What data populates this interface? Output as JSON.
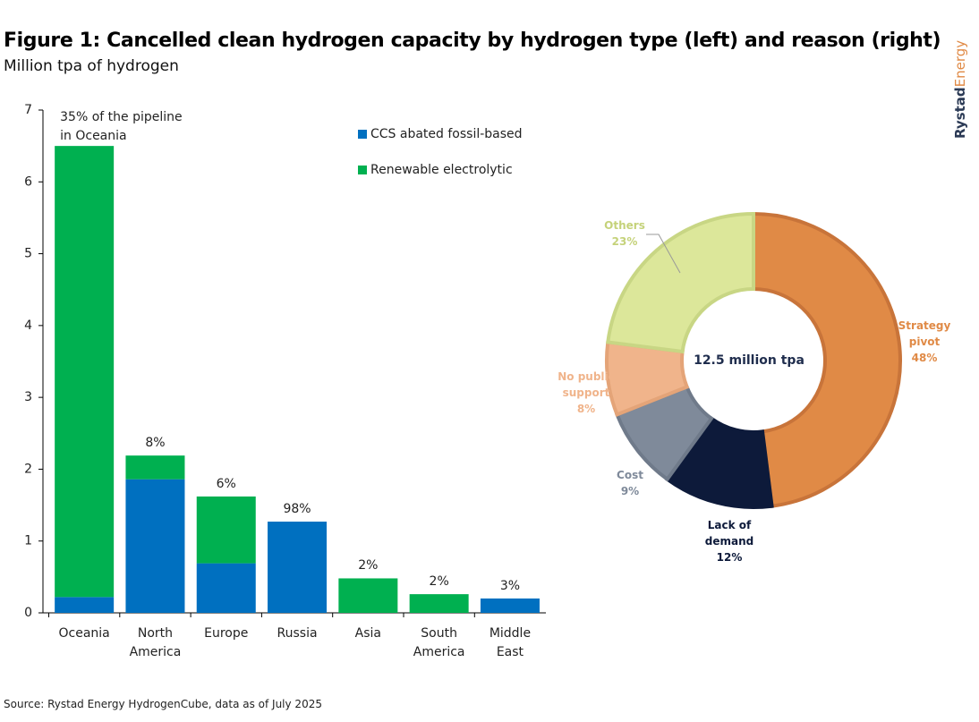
{
  "title": "Figure 1: Cancelled clean hydrogen capacity by hydrogen type (left) and reason (right)",
  "subtitle": "Million tpa of hydrogen",
  "source": "Source: Rystad Energy HydrogenCube, data as of July 2025",
  "logo": {
    "first": "Rystad",
    "second": "Energy"
  },
  "chart_data": [
    {
      "type": "bar",
      "stacked": true,
      "categories": [
        "Oceania",
        "North America",
        "Europe",
        "Russia",
        "Asia",
        "South America",
        "Middle East"
      ],
      "series": [
        {
          "name": "CCS abated fossil-based",
          "color": "#0070c0",
          "values": [
            0.22,
            1.86,
            0.69,
            1.27,
            0,
            0,
            0.2
          ]
        },
        {
          "name": "Renewable electrolytic",
          "color": "#00b050",
          "values": [
            6.28,
            0.33,
            0.93,
            0,
            0.48,
            0.26,
            0
          ]
        }
      ],
      "annotations": [
        "35% of the pipeline in Oceania",
        "8%",
        "6%",
        "98%",
        "2%",
        "2%",
        "3%"
      ],
      "ylim": [
        0,
        7
      ],
      "yticks": [
        0,
        1,
        2,
        3,
        4,
        5,
        6,
        7
      ],
      "grid": false
    },
    {
      "type": "donut",
      "center_label": "12.5 million tpa",
      "categories": [
        "Strategy pivot",
        "Lack of demand",
        "Cost",
        "No public support",
        "Others"
      ],
      "values": [
        48,
        12,
        9,
        8,
        23
      ],
      "value_labels": [
        "48%",
        "12%",
        "9%",
        "8%",
        "23%"
      ],
      "colors": [
        "#e08a46",
        "#0d1a3a",
        "#7f8a9a",
        "#f0b48b",
        "#dce79a"
      ]
    }
  ]
}
